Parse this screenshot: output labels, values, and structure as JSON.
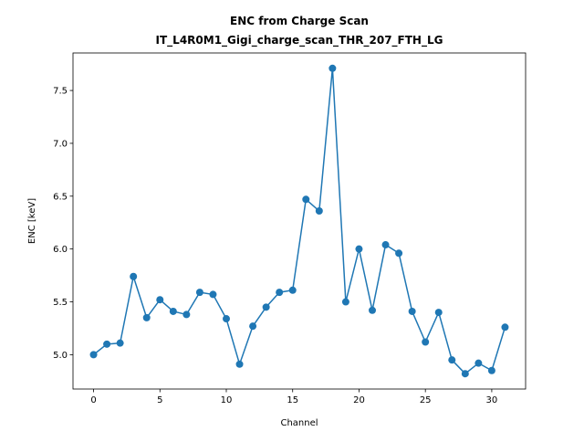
{
  "chart_data": {
    "type": "line",
    "title": "ENC from Charge Scan",
    "subtitle": "IT_L4R0M1_Gigi_charge_scan_THR_207_FTH_LG",
    "xlabel": "Channel",
    "ylabel": "ENC [keV]",
    "xlim": [
      -1.55,
      32.55
    ],
    "ylim": [
      4.675,
      7.855
    ],
    "xticks": [
      0,
      5,
      10,
      15,
      20,
      25,
      30
    ],
    "yticks": [
      5.0,
      5.5,
      6.0,
      6.5,
      7.0,
      7.5
    ],
    "xtick_labels": [
      "0",
      "5",
      "10",
      "15",
      "20",
      "25",
      "30"
    ],
    "ytick_labels": [
      "5.0",
      "5.5",
      "6.0",
      "6.5",
      "7.0",
      "7.5"
    ],
    "grid": false,
    "series": [
      {
        "color": "#1f77b4",
        "marker": "circle",
        "x": [
          0,
          1,
          2,
          3,
          4,
          5,
          6,
          7,
          8,
          9,
          10,
          11,
          12,
          13,
          14,
          15,
          16,
          17,
          18,
          19,
          20,
          21,
          22,
          23,
          24,
          25,
          26,
          27,
          28,
          29,
          30,
          31
        ],
        "y": [
          5.0,
          5.1,
          5.11,
          5.74,
          5.35,
          5.52,
          5.41,
          5.38,
          5.59,
          5.57,
          5.34,
          4.91,
          5.27,
          5.45,
          5.59,
          5.61,
          6.47,
          6.36,
          7.71,
          5.5,
          6.0,
          5.42,
          6.04,
          5.96,
          5.41,
          5.12,
          5.4,
          4.95,
          4.82,
          4.92,
          4.85,
          5.26
        ]
      }
    ]
  }
}
